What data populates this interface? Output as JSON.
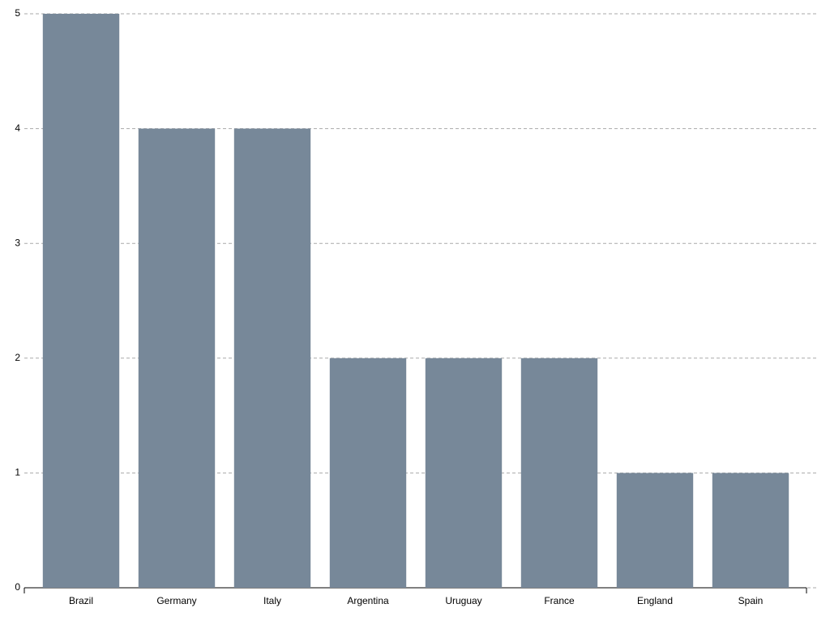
{
  "chart_data": {
    "type": "bar",
    "categories": [
      "Brazil",
      "Germany",
      "Italy",
      "Argentina",
      "Uruguay",
      "France",
      "England",
      "Spain"
    ],
    "values": [
      5,
      4,
      4,
      2,
      2,
      2,
      1,
      1
    ],
    "color": "#778899",
    "ylim": [
      0,
      5
    ],
    "yticks": [
      0,
      1,
      2,
      3,
      4,
      5
    ],
    "grid": true
  }
}
